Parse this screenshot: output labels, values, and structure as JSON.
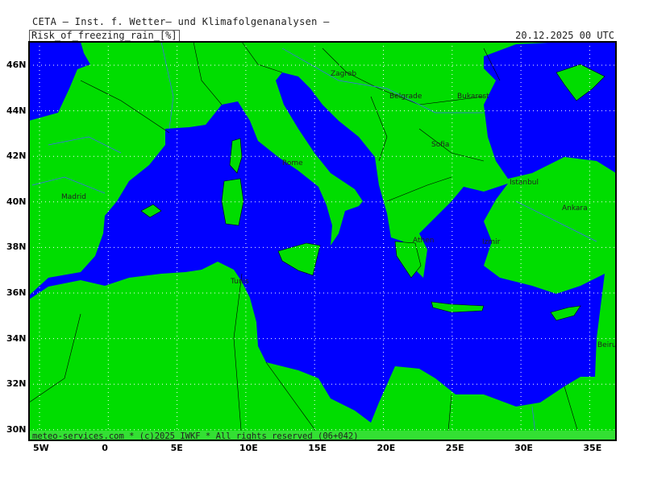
{
  "header": {
    "title": "CETA — Inst. f. Wetter— und Klimafolgenanalysen —",
    "parameter": "Risk_of_freezing_rain_[%]",
    "valid_time": "20.12.2025 00 UTC"
  },
  "footer": {
    "copyright": "meteo-services.com * (c)2025 IWKF * All rights reserved (06+042)"
  },
  "axes": {
    "lon_labels": [
      "5W",
      "0",
      "5E",
      "10E",
      "15E",
      "20E",
      "25E",
      "30E",
      "35E"
    ],
    "lat_labels": [
      "46N",
      "44N",
      "42N",
      "40N",
      "38N",
      "36N",
      "34N",
      "32N",
      "30N"
    ]
  },
  "colors": {
    "land": "#00dd00",
    "sea": "#0000ff",
    "grid": "#ffffff",
    "rivers": "#4466ff",
    "borders": "#000000",
    "footer_band": "#33e033"
  },
  "cities": [
    {
      "name": "Zagreb"
    },
    {
      "name": "Belgrade"
    },
    {
      "name": "Bukarest"
    },
    {
      "name": "Sofia"
    },
    {
      "name": "Rome"
    },
    {
      "name": "Istanbul"
    },
    {
      "name": "Madrid"
    },
    {
      "name": "Ankara"
    },
    {
      "name": "Athen"
    },
    {
      "name": "Izmir"
    },
    {
      "name": "Tunis"
    },
    {
      "name": "Beirut"
    }
  ]
}
